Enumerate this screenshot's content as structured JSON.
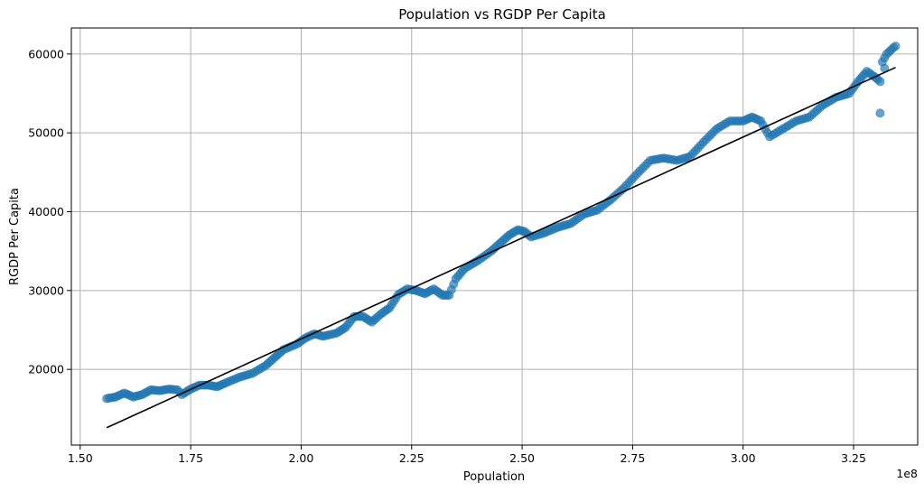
{
  "chart_data": {
    "type": "scatter",
    "title": "Population vs RGDP Per Capita",
    "xlabel": "Population",
    "ylabel": "RGDP Per Capita",
    "x_offset_label": "1e8",
    "xlim": [
      1.48,
      3.395
    ],
    "ylim": [
      10400,
      63300
    ],
    "xticks": [
      1.5,
      1.75,
      2.0,
      2.25,
      2.5,
      2.75,
      3.0,
      3.25
    ],
    "xtick_labels": [
      "1.50",
      "1.75",
      "2.00",
      "2.25",
      "2.50",
      "2.75",
      "3.00",
      "3.25"
    ],
    "yticks": [
      20000,
      30000,
      40000,
      50000,
      60000
    ],
    "ytick_labels": [
      "20000",
      "30000",
      "40000",
      "50000",
      "60000"
    ],
    "grid": true,
    "colors": {
      "points": "#1f77b4",
      "trend": "#000000"
    },
    "scatter_series_keypoints": [
      [
        1.56,
        16300
      ],
      [
        1.58,
        16500
      ],
      [
        1.6,
        17000
      ],
      [
        1.62,
        16500
      ],
      [
        1.64,
        16800
      ],
      [
        1.66,
        17400
      ],
      [
        1.68,
        17300
      ],
      [
        1.7,
        17500
      ],
      [
        1.72,
        17400
      ],
      [
        1.73,
        16800
      ],
      [
        1.75,
        17500
      ],
      [
        1.77,
        18000
      ],
      [
        1.79,
        18000
      ],
      [
        1.81,
        17800
      ],
      [
        1.83,
        18300
      ],
      [
        1.86,
        19000
      ],
      [
        1.89,
        19500
      ],
      [
        1.92,
        20500
      ],
      [
        1.94,
        21500
      ],
      [
        1.96,
        22500
      ],
      [
        1.99,
        23200
      ],
      [
        2.01,
        24000
      ],
      [
        2.03,
        24500
      ],
      [
        2.05,
        24200
      ],
      [
        2.08,
        24600
      ],
      [
        2.1,
        25300
      ],
      [
        2.12,
        26700
      ],
      [
        2.14,
        26700
      ],
      [
        2.16,
        26000
      ],
      [
        2.18,
        27000
      ],
      [
        2.2,
        27800
      ],
      [
        2.22,
        29500
      ],
      [
        2.24,
        30200
      ],
      [
        2.26,
        30000
      ],
      [
        2.28,
        29600
      ],
      [
        2.3,
        30200
      ],
      [
        2.32,
        29400
      ],
      [
        2.335,
        29400
      ],
      [
        2.35,
        31500
      ],
      [
        2.37,
        32800
      ],
      [
        2.4,
        33800
      ],
      [
        2.43,
        35000
      ],
      [
        2.45,
        36000
      ],
      [
        2.47,
        37000
      ],
      [
        2.49,
        37700
      ],
      [
        2.505,
        37500
      ],
      [
        2.52,
        36800
      ],
      [
        2.55,
        37300
      ],
      [
        2.58,
        38000
      ],
      [
        2.61,
        38500
      ],
      [
        2.64,
        39700
      ],
      [
        2.67,
        40200
      ],
      [
        2.7,
        41500
      ],
      [
        2.73,
        43000
      ],
      [
        2.76,
        44800
      ],
      [
        2.79,
        46500
      ],
      [
        2.82,
        46800
      ],
      [
        2.85,
        46500
      ],
      [
        2.88,
        47000
      ],
      [
        2.91,
        48800
      ],
      [
        2.94,
        50500
      ],
      [
        2.97,
        51500
      ],
      [
        3.0,
        51500
      ],
      [
        3.02,
        52000
      ],
      [
        3.04,
        51500
      ],
      [
        3.06,
        49500
      ],
      [
        3.09,
        50500
      ],
      [
        3.12,
        51500
      ],
      [
        3.15,
        52000
      ],
      [
        3.18,
        53500
      ],
      [
        3.21,
        54500
      ],
      [
        3.24,
        55000
      ],
      [
        3.26,
        56500
      ],
      [
        3.28,
        57800
      ],
      [
        3.3,
        57000
      ],
      [
        3.31,
        56500
      ],
      [
        3.315,
        59000
      ],
      [
        3.325,
        60000
      ],
      [
        3.34,
        60800
      ],
      [
        3.345,
        61000
      ]
    ],
    "scatter_outliers": [
      [
        3.31,
        52500
      ],
      [
        3.32,
        58200
      ]
    ],
    "trend_line": {
      "x": [
        1.56,
        3.345
      ],
      "y": [
        12600,
        58300
      ]
    }
  }
}
